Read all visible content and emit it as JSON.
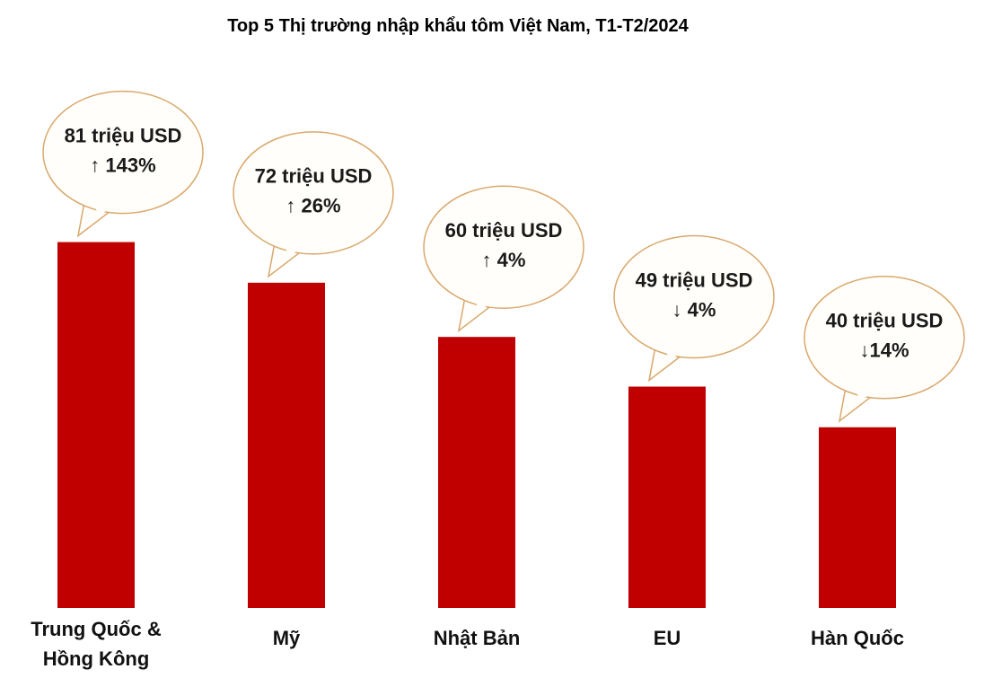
{
  "chart_data": {
    "type": "bar",
    "title": "Top 5 Thị trường nhập khẩu tôm Việt Nam, T1-T2/2024",
    "categories": [
      "Trung Quốc &\nHồng Kông",
      "Mỹ",
      "Nhật Bản",
      "EU",
      "Hàn Quốc"
    ],
    "values": [
      81,
      72,
      60,
      49,
      40
    ],
    "value_labels": [
      "81 triệu USD",
      "72 triệu USD",
      "60 triệu USD",
      "49 triệu USD",
      "40 triệu USD"
    ],
    "change_labels": [
      "↑ 143%",
      "↑ 26%",
      "↑ 4%",
      "↓ 4%",
      "↓14%"
    ],
    "color": "#c00000"
  }
}
